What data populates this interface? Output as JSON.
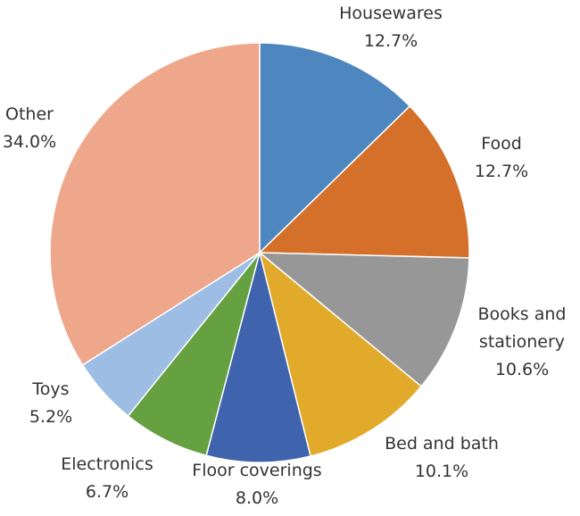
{
  "chart_data": {
    "type": "pie",
    "categories": [
      "Housewares",
      "Food",
      "Books and stationery",
      "Bed and bath",
      "Floor coverings",
      "Electronics",
      "Toys",
      "Other"
    ],
    "values": [
      12.7,
      12.7,
      10.6,
      10.1,
      8.0,
      6.7,
      5.2,
      34.0
    ],
    "value_labels": [
      "12.7%",
      "12.7%",
      "10.6%",
      "10.1%",
      "8.0%",
      "6.7%",
      "5.2%",
      "34.0%"
    ],
    "colors": [
      "#4e86c0",
      "#d4702a",
      "#979797",
      "#e2aa2b",
      "#3f63ad",
      "#65a041",
      "#9dbde5",
      "#eea78a"
    ]
  }
}
